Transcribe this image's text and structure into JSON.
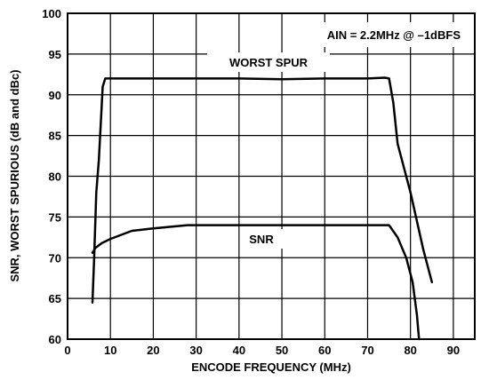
{
  "chart_data": {
    "type": "line",
    "xlabel": "ENCODE FREQUENCY (MHz)",
    "ylabel": "SNR, WORST SPURIOUS (dB and dBc)",
    "xlim": [
      0,
      95
    ],
    "ylim": [
      60,
      100
    ],
    "xticks": [
      0,
      10,
      20,
      30,
      40,
      50,
      60,
      70,
      80,
      90
    ],
    "yticks": [
      60,
      65,
      70,
      75,
      80,
      85,
      90,
      95,
      100
    ],
    "grid": true,
    "annotations": {
      "condition": "AIN = 2.2MHz @ –1dBFS",
      "worst_spur": "WORST SPUR",
      "snr": "SNR"
    },
    "series": [
      {
        "name": "WORST SPUR",
        "x": [
          5.8,
          6.2,
          6.7,
          7.3,
          7.8,
          8.2,
          8.8,
          10,
          20,
          30,
          40,
          50,
          60,
          70,
          74,
          75,
          76,
          77,
          80,
          83,
          85
        ],
        "y": [
          64.5,
          70,
          78,
          82,
          87,
          91,
          92,
          92,
          92,
          92,
          92,
          91.9,
          92,
          92,
          92.1,
          92,
          89,
          84,
          78,
          71,
          67
        ]
      },
      {
        "name": "SNR",
        "x": [
          5.8,
          6.5,
          8,
          10,
          15,
          20,
          28,
          40,
          50,
          60,
          70,
          73,
          75,
          77,
          79,
          80.5,
          81.5,
          82
        ],
        "y": [
          70.6,
          71.2,
          71.8,
          72.3,
          73.3,
          73.6,
          74,
          74,
          74,
          74,
          74,
          74,
          74,
          72.5,
          70,
          67,
          63,
          60
        ]
      }
    ]
  }
}
